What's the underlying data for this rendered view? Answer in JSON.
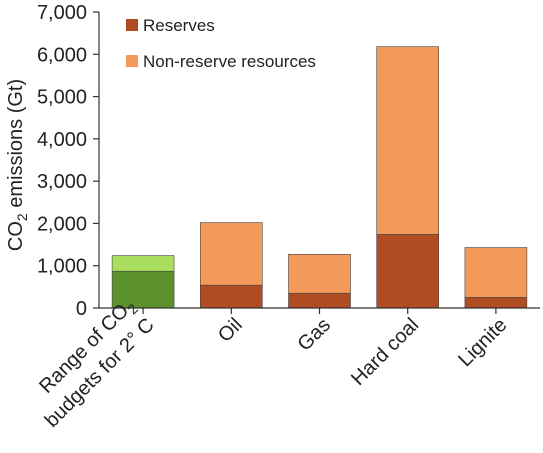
{
  "chart_data": {
    "type": "bar",
    "stacked": true,
    "ylabel_main": "CO",
    "ylabel_sub": "2",
    "ylabel_rest": " emissions (Gt)",
    "ylim": [
      0,
      7000
    ],
    "yticks": [
      0,
      1000,
      2000,
      3000,
      4000,
      5000,
      6000,
      7000
    ],
    "ytick_labels": [
      "0",
      "1,000",
      "2,000",
      "3,000",
      "4,000",
      "5,000",
      "6,000",
      "7,000"
    ],
    "grid": false,
    "legend_position": "top-left",
    "categories": [
      {
        "lines": [
          {
            "main": "Range of CO",
            "sub": "2"
          },
          {
            "main": "budgets for 2° C",
            "sub": ""
          }
        ]
      },
      {
        "lines": [
          {
            "main": "Oil",
            "sub": ""
          }
        ]
      },
      {
        "lines": [
          {
            "main": "Gas",
            "sub": ""
          }
        ]
      },
      {
        "lines": [
          {
            "main": "Hard coal",
            "sub": ""
          }
        ]
      },
      {
        "lines": [
          {
            "main": "Lignite",
            "sub": ""
          }
        ]
      }
    ],
    "budget_range": {
      "low": 870,
      "high": 1240
    },
    "series": [
      {
        "name": "Reserves",
        "color": "#b04c22",
        "values": [
          null,
          540,
          350,
          1740,
          250
        ]
      },
      {
        "name": "Non-reserve resources",
        "color": "#f4995a",
        "values": [
          null,
          1480,
          920,
          4440,
          1180
        ]
      }
    ],
    "colors": {
      "budget_low": "#5c922d",
      "budget_high": "#a9de5c",
      "axis": "#333333"
    }
  }
}
